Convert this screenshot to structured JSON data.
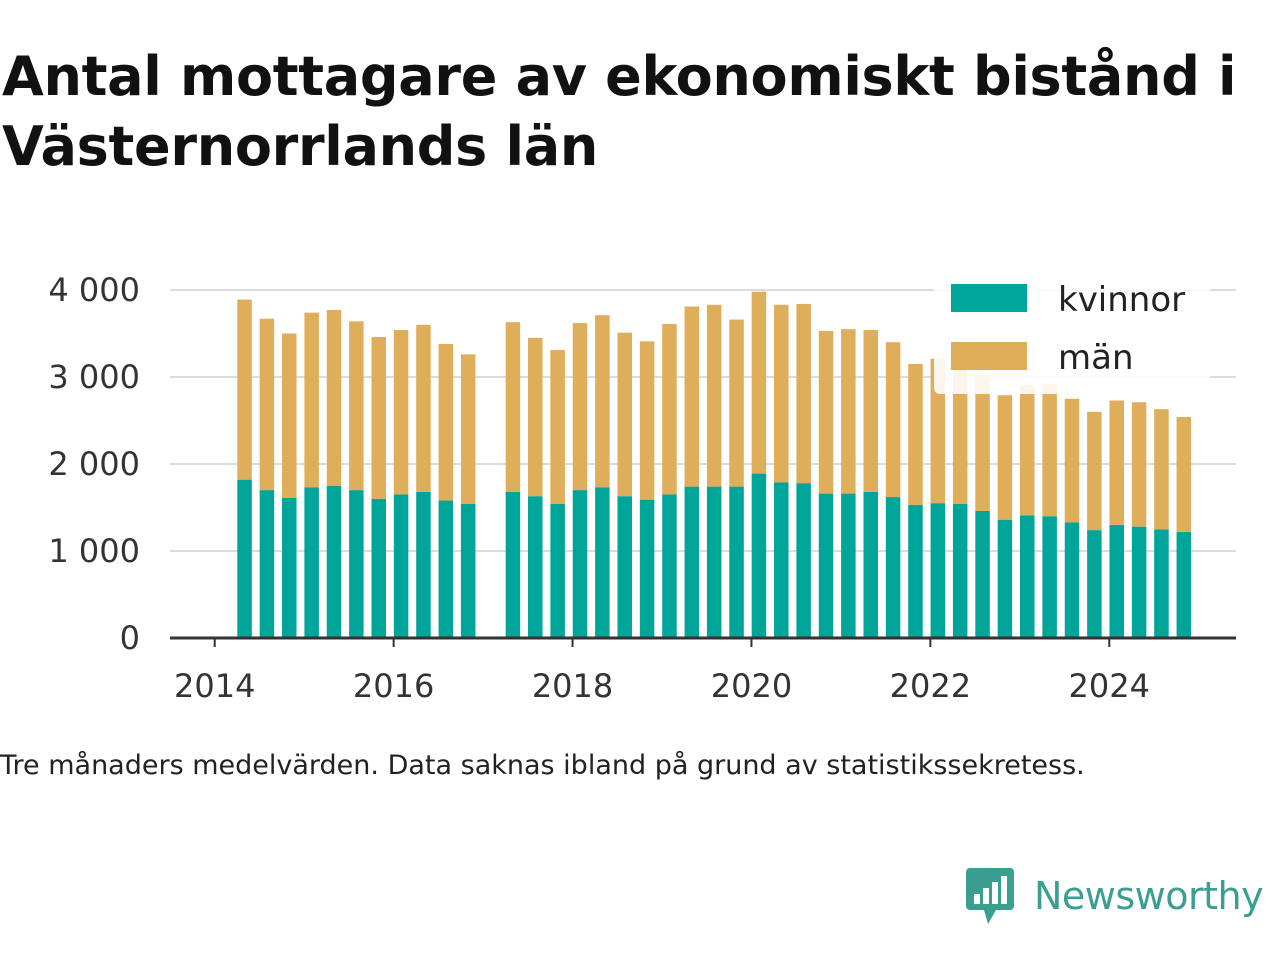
{
  "header": {
    "title": "Antal mottagare av ekonomiskt bistånd i Västernorrlands län"
  },
  "footer": {
    "note": "Tre månaders medelvärden. Data saknas ibland på grund av statistikssekretess."
  },
  "brand": {
    "name": "Newsworthy",
    "logo_icon": "newsworthy-bar-chart-icon",
    "color": "#3a9e90"
  },
  "chart_data": {
    "type": "bar",
    "stacked": true,
    "title": "Antal mottagare av ekonomiskt bistånd i Västernorrlands län",
    "xlabel": "",
    "ylabel": "",
    "xlim": [
      "2013-07",
      "2025-06"
    ],
    "ylim": [
      0,
      4000
    ],
    "grid": true,
    "legend_position": "top-right",
    "x_ticks": [
      {
        "value": "2014-01",
        "label": "2014"
      },
      {
        "value": "2016-01",
        "label": "2016"
      },
      {
        "value": "2018-01",
        "label": "2018"
      },
      {
        "value": "2020-01",
        "label": "2020"
      },
      {
        "value": "2022-01",
        "label": "2022"
      },
      {
        "value": "2024-01",
        "label": "2024"
      }
    ],
    "y_ticks": [
      {
        "value": 0,
        "label": "0"
      },
      {
        "value": 1000,
        "label": "1 000"
      },
      {
        "value": 2000,
        "label": "2 000"
      },
      {
        "value": 3000,
        "label": "3 000"
      },
      {
        "value": 4000,
        "label": "4 000"
      }
    ],
    "x": [
      "2014-05",
      "2014-08",
      "2014-11",
      "2015-02",
      "2015-05",
      "2015-08",
      "2015-11",
      "2016-02",
      "2016-05",
      "2016-08",
      "2016-11",
      "2017-05",
      "2017-08",
      "2017-11",
      "2018-02",
      "2018-05",
      "2018-08",
      "2018-11",
      "2019-02",
      "2019-05",
      "2019-08",
      "2019-11",
      "2020-02",
      "2020-05",
      "2020-08",
      "2020-11",
      "2021-02",
      "2021-05",
      "2021-08",
      "2021-11",
      "2022-02",
      "2022-05",
      "2022-08",
      "2022-11",
      "2023-02",
      "2023-05",
      "2023-08",
      "2023-11",
      "2024-02",
      "2024-05",
      "2024-08",
      "2024-11"
    ],
    "series": [
      {
        "name": "kvinnor",
        "color": "#00a59a",
        "values": [
          1820,
          1700,
          1610,
          1730,
          1750,
          1700,
          1600,
          1650,
          1680,
          1580,
          1540,
          1680,
          1630,
          1540,
          1700,
          1730,
          1630,
          1590,
          1650,
          1740,
          1740,
          1740,
          1890,
          1790,
          1780,
          1660,
          1660,
          1680,
          1620,
          1530,
          1550,
          1540,
          1460,
          1360,
          1410,
          1400,
          1330,
          1240,
          1300,
          1280,
          1250,
          1220
        ]
      },
      {
        "name": "män",
        "color": "#dfae5b",
        "values": [
          2070,
          1970,
          1890,
          2010,
          2020,
          1940,
          1860,
          1890,
          1920,
          1800,
          1720,
          1950,
          1820,
          1770,
          1920,
          1980,
          1880,
          1820,
          1960,
          2070,
          2090,
          1920,
          2090,
          2040,
          2060,
          1870,
          1890,
          1860,
          1780,
          1620,
          1660,
          1650,
          1560,
          1430,
          1500,
          1520,
          1420,
          1360,
          1430,
          1430,
          1380,
          1320
        ]
      }
    ]
  }
}
